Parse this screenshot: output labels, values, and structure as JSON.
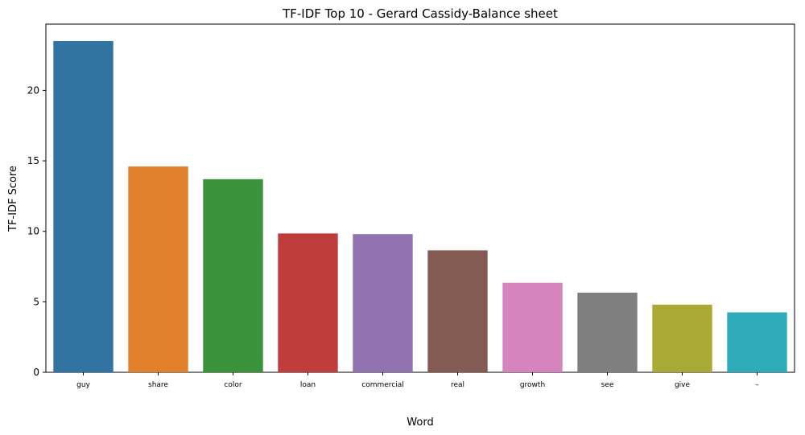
{
  "chart_data": {
    "type": "bar",
    "title": "TF-IDF Top 10 - Gerard Cassidy-Balance sheet",
    "xlabel": "Word",
    "ylabel": "TF-IDF Score",
    "categories": [
      "guy",
      "share",
      "color",
      "loan",
      "commercial",
      "real",
      "growth",
      "see",
      "give",
      "–"
    ],
    "values": [
      23.5,
      14.6,
      13.7,
      9.85,
      9.8,
      8.65,
      6.35,
      5.65,
      4.8,
      4.25
    ],
    "colors": [
      "#3274a1",
      "#e1812c",
      "#3a923a",
      "#c03d3e",
      "#9372b2",
      "#845b53",
      "#d684bd",
      "#7f7f7f",
      "#a9aa35",
      "#2eabb8"
    ],
    "ylim": [
      0,
      24.7
    ],
    "yticks": [
      0,
      5,
      10,
      15,
      20
    ],
    "grid": false,
    "legend": "none"
  }
}
